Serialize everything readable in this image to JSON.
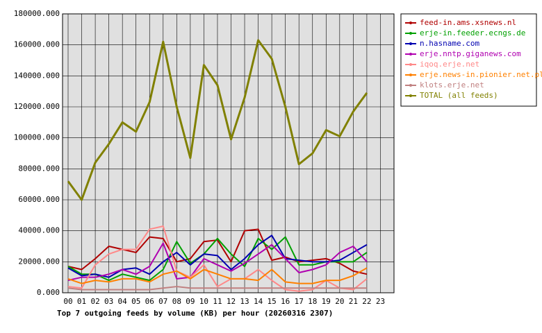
{
  "chart_data": {
    "type": "line",
    "title": "Top 7 outgoing feeds by volume (KB) per hour (20260316 2307)",
    "categories": [
      "00",
      "01",
      "02",
      "03",
      "04",
      "05",
      "06",
      "07",
      "08",
      "09",
      "10",
      "11",
      "12",
      "13",
      "14",
      "15",
      "16",
      "17",
      "18",
      "19",
      "20",
      "21",
      "22",
      "23"
    ],
    "ylim": [
      0,
      180000
    ],
    "yticks": [
      {
        "value": 0,
        "label": "0.000"
      },
      {
        "value": 20000,
        "label": "20000.000"
      },
      {
        "value": 40000,
        "label": "40000.000"
      },
      {
        "value": 60000,
        "label": "60000.000"
      },
      {
        "value": 80000,
        "label": "80000.000"
      },
      {
        "value": 100000,
        "label": "100000.000"
      },
      {
        "value": 120000,
        "label": "120000.000"
      },
      {
        "value": 140000,
        "label": "140000.000"
      },
      {
        "value": 160000,
        "label": "160000.000"
      },
      {
        "value": 180000,
        "label": "180000.000"
      }
    ],
    "grid": true,
    "legend": "right",
    "series": [
      {
        "name": "feed-in.ams.xsnews.nl",
        "color": "#b00000",
        "values": [
          17000,
          15000,
          22000,
          30000,
          28000,
          26000,
          36000,
          35000,
          20000,
          22000,
          33000,
          34000,
          20000,
          40000,
          41000,
          21000,
          23000,
          20000,
          21000,
          22000,
          19000,
          14000,
          12000,
          null
        ]
      },
      {
        "name": "erje-in.feeder.ecngs.de",
        "color": "#00a000",
        "values": [
          17000,
          12000,
          12000,
          8000,
          12000,
          10000,
          8000,
          15000,
          33000,
          19000,
          25000,
          35000,
          25000,
          17000,
          35000,
          28000,
          36000,
          18000,
          18000,
          20000,
          20000,
          20000,
          26000,
          null
        ]
      },
      {
        "name": "n.hasname.com",
        "color": "#0000b0",
        "values": [
          16000,
          11000,
          12000,
          10000,
          15000,
          16000,
          12000,
          20000,
          26000,
          18000,
          25000,
          24000,
          15000,
          22000,
          31000,
          37000,
          22000,
          21000,
          20000,
          20000,
          21000,
          26000,
          31000,
          null
        ]
      },
      {
        "name": "erje.nntp.giganews.com",
        "color": "#b000b0",
        "values": [
          8000,
          10000,
          10000,
          12000,
          15000,
          12000,
          17000,
          32000,
          9000,
          10000,
          22000,
          18000,
          14000,
          19000,
          25000,
          31000,
          22000,
          13000,
          15000,
          18000,
          26000,
          30000,
          20000,
          null
        ]
      },
      {
        "name": "iqoq.erje.net",
        "color": "#ff8888",
        "values": [
          4000,
          3000,
          18000,
          25000,
          28000,
          28000,
          41000,
          43000,
          14000,
          10000,
          18000,
          4000,
          9000,
          9000,
          15000,
          8000,
          2000,
          1000,
          2000,
          8000,
          3000,
          2000,
          9000,
          null
        ]
      },
      {
        "name": "erje.news-in.pionier.net.pl",
        "color": "#ff8000",
        "values": [
          9000,
          6000,
          8000,
          7000,
          9000,
          9000,
          7000,
          12000,
          14000,
          9000,
          15000,
          12000,
          9000,
          9000,
          8000,
          15000,
          7000,
          6000,
          6000,
          8000,
          8000,
          11000,
          16000,
          null
        ]
      },
      {
        "name": "klots.erje.net",
        "color": "#c08080",
        "values": [
          3000,
          2000,
          2000,
          2000,
          2000,
          2000,
          2000,
          3000,
          4000,
          3000,
          3000,
          3000,
          3000,
          3000,
          3000,
          3000,
          3000,
          3000,
          3000,
          3000,
          3000,
          3000,
          3000,
          null
        ]
      },
      {
        "name": "TOTAL (all feeds)",
        "color": "#808000",
        "values": [
          72000,
          60000,
          84000,
          96000,
          110000,
          104000,
          123000,
          162000,
          120000,
          87000,
          147000,
          134000,
          99000,
          126000,
          163000,
          151000,
          120000,
          83000,
          90000,
          105000,
          101000,
          117000,
          129000,
          null
        ]
      }
    ]
  }
}
